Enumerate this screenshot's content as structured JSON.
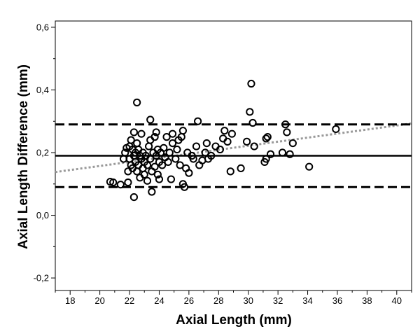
{
  "chart_data": {
    "type": "scatter",
    "title": "",
    "xlabel": "Axial Length (mm)",
    "ylabel": "Axial Length Difference (mm)",
    "xlim": [
      17,
      41
    ],
    "ylim": [
      -0.24,
      0.62
    ],
    "xticks": [
      18,
      20,
      22,
      24,
      26,
      28,
      30,
      32,
      34,
      36,
      38,
      40
    ],
    "yticks": [
      -0.2,
      0.0,
      0.2,
      0.4,
      0.6
    ],
    "ytick_labels": [
      "-0,2",
      "0,0",
      "0,2",
      "0,4",
      "0,6"
    ],
    "mean_line": 0.19,
    "upper_loa": 0.29,
    "lower_loa": 0.09,
    "regression_line": {
      "x": [
        17,
        41
      ],
      "y": [
        0.138,
        0.293
      ]
    },
    "points": [
      [
        20.7,
        0.107
      ],
      [
        20.9,
        0.105
      ],
      [
        21.4,
        0.098
      ],
      [
        21.6,
        0.18
      ],
      [
        21.7,
        0.2
      ],
      [
        21.8,
        0.215
      ],
      [
        21.9,
        0.14
      ],
      [
        21.9,
        0.105
      ],
      [
        22.0,
        0.22
      ],
      [
        22.0,
        0.18
      ],
      [
        22.1,
        0.24
      ],
      [
        22.1,
        0.16
      ],
      [
        22.2,
        0.21
      ],
      [
        22.2,
        0.15
      ],
      [
        22.3,
        0.265
      ],
      [
        22.3,
        0.19
      ],
      [
        22.3,
        0.058
      ],
      [
        22.4,
        0.2
      ],
      [
        22.4,
        0.17
      ],
      [
        22.5,
        0.36
      ],
      [
        22.5,
        0.23
      ],
      [
        22.5,
        0.14
      ],
      [
        22.6,
        0.21
      ],
      [
        22.6,
        0.16
      ],
      [
        22.7,
        0.19
      ],
      [
        22.7,
        0.12
      ],
      [
        22.8,
        0.26
      ],
      [
        22.8,
        0.18
      ],
      [
        22.9,
        0.15
      ],
      [
        22.9,
        0.2
      ],
      [
        23.0,
        0.17
      ],
      [
        23.0,
        0.13
      ],
      [
        23.1,
        0.19
      ],
      [
        23.2,
        0.16
      ],
      [
        23.2,
        0.11
      ],
      [
        23.3,
        0.22
      ],
      [
        23.4,
        0.24
      ],
      [
        23.4,
        0.305
      ],
      [
        23.4,
        0.18
      ],
      [
        23.5,
        0.14
      ],
      [
        23.5,
        0.075
      ],
      [
        23.6,
        0.2
      ],
      [
        23.7,
        0.25
      ],
      [
        23.7,
        0.155
      ],
      [
        23.8,
        0.265
      ],
      [
        23.8,
        0.19
      ],
      [
        23.9,
        0.21
      ],
      [
        23.9,
        0.13
      ],
      [
        24.0,
        0.17
      ],
      [
        24.0,
        0.115
      ],
      [
        24.1,
        0.2
      ],
      [
        24.2,
        0.16
      ],
      [
        24.3,
        0.215
      ],
      [
        24.4,
        0.185
      ],
      [
        24.5,
        0.25
      ],
      [
        24.6,
        0.17
      ],
      [
        24.7,
        0.2
      ],
      [
        24.8,
        0.115
      ],
      [
        24.9,
        0.23
      ],
      [
        24.9,
        0.26
      ],
      [
        25.1,
        0.18
      ],
      [
        25.2,
        0.21
      ],
      [
        25.3,
        0.24
      ],
      [
        25.4,
        0.16
      ],
      [
        25.5,
        0.25
      ],
      [
        25.6,
        0.27
      ],
      [
        25.6,
        0.1
      ],
      [
        25.7,
        0.09
      ],
      [
        25.8,
        0.15
      ],
      [
        25.9,
        0.2
      ],
      [
        26.0,
        0.135
      ],
      [
        26.2,
        0.19
      ],
      [
        26.3,
        0.18
      ],
      [
        26.5,
        0.22
      ],
      [
        26.6,
        0.3
      ],
      [
        26.7,
        0.16
      ],
      [
        26.9,
        0.175
      ],
      [
        27.1,
        0.2
      ],
      [
        27.2,
        0.23
      ],
      [
        27.3,
        0.18
      ],
      [
        27.5,
        0.19
      ],
      [
        27.8,
        0.22
      ],
      [
        28.1,
        0.21
      ],
      [
        28.3,
        0.245
      ],
      [
        28.4,
        0.27
      ],
      [
        28.6,
        0.235
      ],
      [
        28.8,
        0.14
      ],
      [
        28.9,
        0.26
      ],
      [
        29.5,
        0.15
      ],
      [
        29.9,
        0.235
      ],
      [
        30.1,
        0.33
      ],
      [
        30.2,
        0.42
      ],
      [
        30.3,
        0.295
      ],
      [
        30.4,
        0.22
      ],
      [
        31.1,
        0.17
      ],
      [
        31.2,
        0.245
      ],
      [
        31.2,
        0.18
      ],
      [
        31.3,
        0.25
      ],
      [
        31.5,
        0.195
      ],
      [
        32.3,
        0.2
      ],
      [
        32.5,
        0.29
      ],
      [
        32.6,
        0.265
      ],
      [
        32.8,
        0.195
      ],
      [
        33.0,
        0.23
      ],
      [
        34.1,
        0.155
      ],
      [
        35.9,
        0.275
      ]
    ]
  }
}
